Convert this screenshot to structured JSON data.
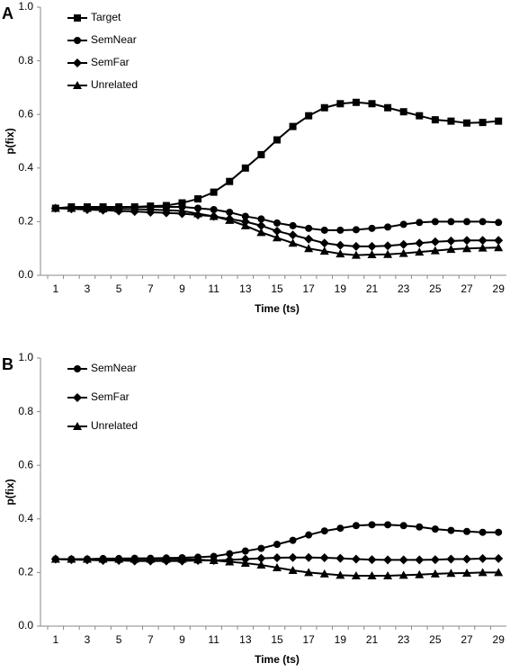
{
  "chart_data": [
    {
      "type": "line",
      "label": "A",
      "y_label": "p(fix)",
      "x_label": "Time (ts)",
      "categories": [
        "1",
        null,
        "3",
        null,
        "5",
        null,
        "7",
        null,
        "9",
        null,
        "11",
        null,
        "13",
        null,
        "15",
        null,
        "17",
        null,
        "19",
        null,
        "21",
        null,
        "23",
        null,
        "25",
        null,
        "27",
        null,
        "29"
      ],
      "ylim": [
        0,
        1
      ],
      "yticks": [
        {
          "value": 0,
          "label": "0.0"
        },
        {
          "value": 0.2,
          "label": "0.2"
        },
        {
          "value": 0.4,
          "label": "0.4"
        },
        {
          "value": 0.6,
          "label": "0.6"
        },
        {
          "value": 0.8,
          "label": "0.8"
        },
        {
          "value": 1,
          "label": "1.0"
        }
      ],
      "series": [
        {
          "name": "Target",
          "color": "#000000",
          "marker": "square",
          "values": [
            0.25,
            0.255,
            0.255,
            0.255,
            0.255,
            0.255,
            0.258,
            0.26,
            0.27,
            0.285,
            0.31,
            0.35,
            0.4,
            0.45,
            0.505,
            0.555,
            0.595,
            0.625,
            0.64,
            0.645,
            0.64,
            0.625,
            0.61,
            0.595,
            0.58,
            0.575,
            0.568,
            0.57,
            0.575
          ]
        },
        {
          "name": "SemNear",
          "color": "#000000",
          "marker": "circle",
          "values": [
            0.25,
            0.25,
            0.252,
            0.252,
            0.255,
            0.255,
            0.255,
            0.255,
            0.255,
            0.25,
            0.245,
            0.235,
            0.22,
            0.21,
            0.195,
            0.185,
            0.175,
            0.168,
            0.168,
            0.17,
            0.175,
            0.18,
            0.19,
            0.197,
            0.2,
            0.2,
            0.2,
            0.2,
            0.197
          ]
        },
        {
          "name": "SemFar",
          "color": "#000000",
          "marker": "diamond",
          "values": [
            0.25,
            0.248,
            0.245,
            0.243,
            0.24,
            0.238,
            0.235,
            0.233,
            0.23,
            0.225,
            0.22,
            0.21,
            0.2,
            0.185,
            0.165,
            0.15,
            0.135,
            0.12,
            0.112,
            0.108,
            0.108,
            0.11,
            0.115,
            0.12,
            0.125,
            0.128,
            0.13,
            0.13,
            0.13
          ]
        },
        {
          "name": "Unrelated",
          "color": "#000000",
          "marker": "triangle",
          "values": [
            0.25,
            0.25,
            0.25,
            0.248,
            0.248,
            0.247,
            0.245,
            0.243,
            0.24,
            0.23,
            0.22,
            0.205,
            0.185,
            0.16,
            0.14,
            0.12,
            0.1,
            0.09,
            0.08,
            0.075,
            0.077,
            0.078,
            0.082,
            0.087,
            0.092,
            0.097,
            0.1,
            0.102,
            0.103
          ]
        }
      ]
    },
    {
      "type": "line",
      "label": "B",
      "y_label": "p(fix)",
      "x_label": "Time (ts)",
      "categories": [
        "1",
        null,
        "3",
        null,
        "5",
        null,
        "7",
        null,
        "9",
        null,
        "11",
        null,
        "13",
        null,
        "15",
        null,
        "17",
        null,
        "19",
        null,
        "21",
        null,
        "23",
        null,
        "25",
        null,
        "27",
        null,
        "29"
      ],
      "ylim": [
        0,
        1
      ],
      "yticks": [
        {
          "value": 0,
          "label": "0.0"
        },
        {
          "value": 0.2,
          "label": "0.2"
        },
        {
          "value": 0.4,
          "label": "0.4"
        },
        {
          "value": 0.6,
          "label": "0.6"
        },
        {
          "value": 0.8,
          "label": "0.8"
        },
        {
          "value": 1,
          "label": "1.0"
        }
      ],
      "series": [
        {
          "name": "SemNear",
          "color": "#000000",
          "marker": "circle",
          "values": [
            0.25,
            0.25,
            0.25,
            0.252,
            0.252,
            0.253,
            0.253,
            0.254,
            0.255,
            0.257,
            0.26,
            0.27,
            0.28,
            0.29,
            0.305,
            0.32,
            0.34,
            0.355,
            0.365,
            0.375,
            0.378,
            0.378,
            0.375,
            0.37,
            0.362,
            0.357,
            0.353,
            0.35,
            0.35
          ]
        },
        {
          "name": "SemFar",
          "color": "#000000",
          "marker": "diamond",
          "values": [
            0.25,
            0.248,
            0.247,
            0.245,
            0.245,
            0.243,
            0.243,
            0.243,
            0.243,
            0.245,
            0.245,
            0.247,
            0.25,
            0.253,
            0.255,
            0.256,
            0.256,
            0.255,
            0.253,
            0.25,
            0.248,
            0.247,
            0.247,
            0.247,
            0.248,
            0.25,
            0.25,
            0.252,
            0.252
          ]
        },
        {
          "name": "Unrelated",
          "color": "#000000",
          "marker": "triangle",
          "values": [
            0.25,
            0.25,
            0.25,
            0.25,
            0.25,
            0.25,
            0.25,
            0.25,
            0.25,
            0.248,
            0.245,
            0.24,
            0.235,
            0.228,
            0.218,
            0.208,
            0.2,
            0.195,
            0.19,
            0.188,
            0.188,
            0.188,
            0.19,
            0.192,
            0.195,
            0.197,
            0.198,
            0.2,
            0.2
          ]
        }
      ]
    }
  ]
}
